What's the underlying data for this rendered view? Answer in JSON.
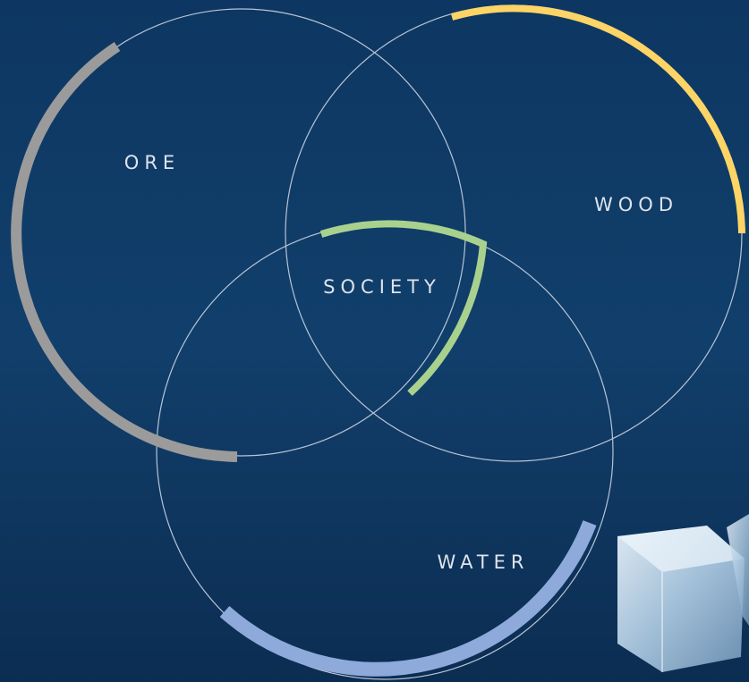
{
  "nodes": [
    {
      "label": "ORE"
    },
    {
      "label": "WOOD"
    },
    {
      "label": "SOCIETY"
    },
    {
      "label": "WATER"
    }
  ]
}
